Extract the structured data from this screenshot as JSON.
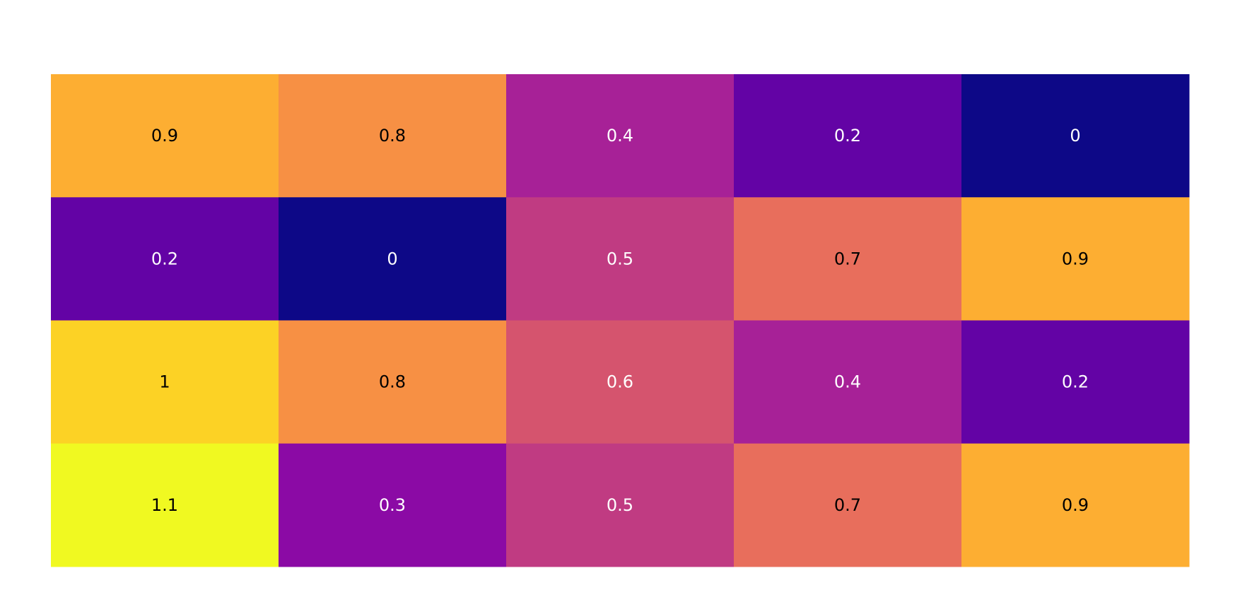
{
  "chart_data": {
    "type": "heatmap",
    "title": "",
    "xlabel": "",
    "ylabel": "",
    "rows": 4,
    "columns": 5,
    "z": [
      [
        0.9,
        0.8,
        0.4,
        0.2,
        0
      ],
      [
        0.2,
        0,
        0.5,
        0.7,
        0.9
      ],
      [
        1,
        0.8,
        0.6,
        0.4,
        0.2
      ],
      [
        1.1,
        0.3,
        0.5,
        0.7,
        0.9
      ]
    ],
    "text": [
      [
        "0.9",
        "0.8",
        "0.4",
        "0.2",
        "0"
      ],
      [
        "0.2",
        "0",
        "0.5",
        "0.7",
        "0.9"
      ],
      [
        "1",
        "0.8",
        "0.6",
        "0.4",
        "0.2"
      ],
      [
        "1.1",
        "0.3",
        "0.5",
        "0.7",
        "0.9"
      ]
    ],
    "zmin": 0,
    "zmax": 1.1,
    "colorscale": "Plasma",
    "colors": {
      "0": "#0d0887",
      "0.2": "#6303a5",
      "0.3": "#8b0aa5",
      "0.4": "#a72197",
      "0.5": "#c03b82",
      "0.6": "#d5546e",
      "0.7": "#e86e5c",
      "0.8": "#f79044",
      "0.9": "#fdae32",
      "1": "#fcd225",
      "1.1": "#f0f921"
    },
    "show_axes": false,
    "grid": false,
    "legend": "none"
  }
}
